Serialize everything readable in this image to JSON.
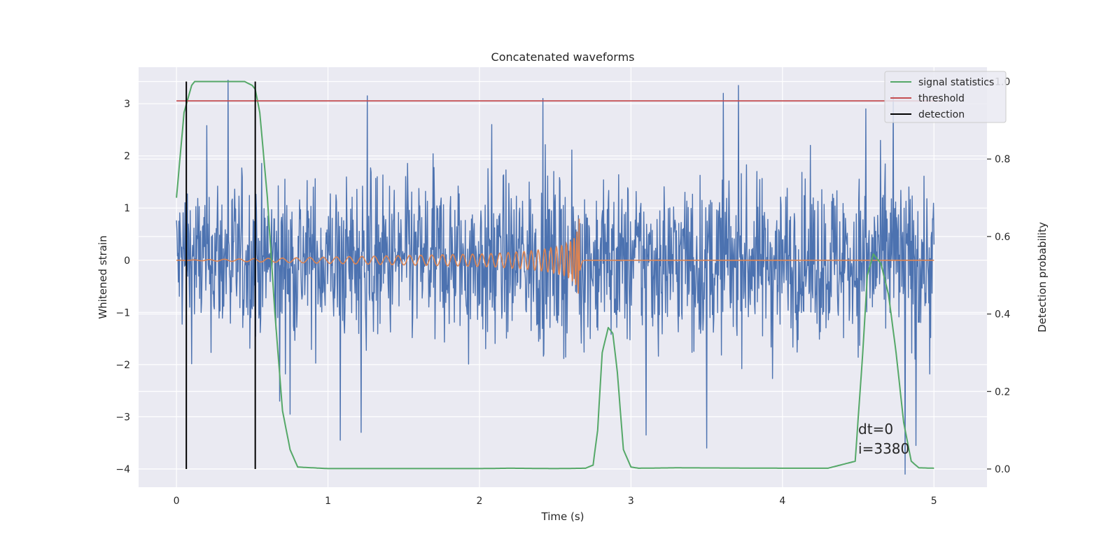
{
  "chart_data": {
    "type": "line",
    "title": "Concatenated waveforms",
    "xlabel": "Time (s)",
    "ylabel": "Whitened strain",
    "ylabel_right": "Detection probability",
    "xlim": [
      -0.25,
      5.35
    ],
    "ylim": [
      -4.35,
      3.7
    ],
    "ylim_right": [
      -0.047,
      1.037
    ],
    "x_ticks": [
      0,
      1,
      2,
      3,
      4,
      5
    ],
    "y_ticks": [
      -4,
      -3,
      -2,
      -1,
      0,
      1,
      2,
      3
    ],
    "y_ticks_right": [
      0.0,
      0.2,
      0.4,
      0.6,
      0.8,
      1.0
    ],
    "x_tick_labels": [
      "0",
      "1",
      "2",
      "3",
      "4",
      "5"
    ],
    "y_tick_labels": [
      "−4",
      "−3",
      "−2",
      "−1",
      "0",
      "1",
      "2",
      "3"
    ],
    "y_tick_labels_right": [
      "0.0",
      "0.2",
      "0.4",
      "0.6",
      "0.8",
      "1.0"
    ],
    "grid": true,
    "legend_position": "top-right",
    "colors": {
      "background": "#eaeaf2",
      "grid": "#ffffff",
      "strain": "#4c72b0",
      "injection": "#dd8452",
      "signal_statistics": "#55a868",
      "threshold": "#c44e52",
      "detection": "#000000"
    },
    "series": [
      {
        "name": "",
        "role": "whitened-strain-noise",
        "axis": "left",
        "x_range": [
          0,
          5
        ],
        "y_range": [
          -4.1,
          3.45
        ],
        "spikes": [
          {
            "x": 0.34,
            "y": 3.45
          },
          {
            "x": 1.26,
            "y": 3.15
          },
          {
            "x": 2.08,
            "y": 2.6
          },
          {
            "x": 2.42,
            "y": 3.1
          },
          {
            "x": 3.61,
            "y": 3.2
          },
          {
            "x": 3.71,
            "y": 3.35
          },
          {
            "x": 4.55,
            "y": 2.9
          },
          {
            "x": 4.73,
            "y": 3.15
          },
          {
            "x": 1.08,
            "y": -3.45
          },
          {
            "x": 1.22,
            "y": -3.3
          },
          {
            "x": 3.1,
            "y": -3.35
          },
          {
            "x": 3.5,
            "y": -3.6
          },
          {
            "x": 4.81,
            "y": -4.1
          },
          {
            "x": 4.88,
            "y": -3.55
          },
          {
            "x": 0.68,
            "y": -2.7
          },
          {
            "x": 0.75,
            "y": -2.95
          }
        ]
      },
      {
        "name": "",
        "role": "injected-chirp",
        "axis": "left",
        "x": [
          0,
          2.0,
          2.1,
          2.2,
          2.3,
          2.4,
          2.5,
          2.55,
          2.6,
          2.63,
          2.65,
          2.66,
          2.67,
          2.68,
          2.7,
          5.0
        ],
        "amplitude": [
          0,
          0.12,
          0.13,
          0.15,
          0.17,
          0.2,
          0.25,
          0.29,
          0.36,
          0.44,
          0.6,
          0.85,
          0.4,
          0.05,
          0,
          0
        ]
      },
      {
        "name": "signal statistics",
        "axis": "right",
        "x": [
          0,
          0.05,
          0.1,
          0.12,
          0.15,
          0.2,
          0.3,
          0.45,
          0.5,
          0.52,
          0.55,
          0.6,
          0.65,
          0.7,
          0.75,
          0.8,
          1.0,
          2.0,
          2.2,
          2.5,
          2.7,
          2.75,
          2.78,
          2.81,
          2.85,
          2.88,
          2.91,
          2.95,
          3.0,
          3.05,
          3.3,
          4.0,
          4.3,
          4.48,
          4.53,
          4.56,
          4.6,
          4.65,
          4.7,
          4.75,
          4.8,
          4.85,
          4.9,
          5.0
        ],
        "y": [
          0.7,
          0.92,
          0.99,
          1.0,
          1.0,
          1.0,
          1.0,
          1.0,
          0.99,
          0.98,
          0.92,
          0.7,
          0.4,
          0.15,
          0.05,
          0.005,
          0.001,
          0.001,
          0.002,
          0.001,
          0.002,
          0.01,
          0.1,
          0.3,
          0.365,
          0.35,
          0.25,
          0.05,
          0.005,
          0.002,
          0.003,
          0.002,
          0.002,
          0.02,
          0.3,
          0.5,
          0.555,
          0.53,
          0.45,
          0.3,
          0.12,
          0.02,
          0.003,
          0.002
        ]
      },
      {
        "name": "threshold",
        "axis": "right",
        "x": [
          0,
          5.05
        ],
        "y": [
          0.95,
          0.95
        ]
      },
      {
        "name": "detection",
        "axis": "right",
        "vertical_lines_x": [
          0.065,
          0.52
        ],
        "y_span": [
          0,
          1.0
        ]
      }
    ],
    "annotations": [
      "dt=0",
      "i=3380"
    ],
    "annotation_position": {
      "x": 4.5,
      "y": -3.4
    }
  }
}
